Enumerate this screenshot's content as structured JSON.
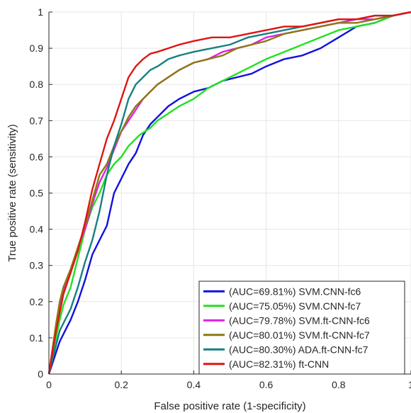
{
  "chart_data": {
    "type": "line",
    "title": "",
    "xlabel": "False positive rate (1-specificity)",
    "ylabel": "True positive rate (sensitivity)",
    "xlim": [
      0,
      1
    ],
    "ylim": [
      0,
      1
    ],
    "x_ticks": [
      "0",
      "0.2",
      "0.4",
      "0.6",
      "0.8",
      "1"
    ],
    "y_ticks": [
      "0",
      "0.1",
      "0.2",
      "0.3",
      "0.4",
      "0.5",
      "0.6",
      "0.7",
      "0.8",
      "0.9",
      "1"
    ],
    "grid": true,
    "legend_position": "bottom-right",
    "series": [
      {
        "name": "(AUC=69.81%) SVM.CNN-fc6",
        "color": "#1010e0",
        "x": [
          0,
          0.01,
          0.02,
          0.03,
          0.04,
          0.06,
          0.08,
          0.1,
          0.12,
          0.14,
          0.16,
          0.18,
          0.2,
          0.22,
          0.24,
          0.26,
          0.28,
          0.3,
          0.33,
          0.36,
          0.4,
          0.44,
          0.48,
          0.52,
          0.56,
          0.6,
          0.65,
          0.7,
          0.75,
          0.8,
          0.85,
          0.9,
          0.95,
          1.0
        ],
        "y": [
          0,
          0.03,
          0.06,
          0.09,
          0.11,
          0.15,
          0.2,
          0.26,
          0.33,
          0.37,
          0.41,
          0.5,
          0.54,
          0.58,
          0.61,
          0.66,
          0.69,
          0.71,
          0.74,
          0.76,
          0.78,
          0.79,
          0.81,
          0.82,
          0.83,
          0.85,
          0.87,
          0.88,
          0.9,
          0.93,
          0.96,
          0.97,
          0.99,
          1.0
        ]
      },
      {
        "name": "(AUC=75.05%) SVM.CNN-fc7",
        "color": "#22e022",
        "x": [
          0,
          0.01,
          0.02,
          0.03,
          0.04,
          0.06,
          0.08,
          0.1,
          0.12,
          0.14,
          0.16,
          0.18,
          0.2,
          0.22,
          0.25,
          0.28,
          0.3,
          0.33,
          0.36,
          0.4,
          0.44,
          0.48,
          0.52,
          0.56,
          0.6,
          0.65,
          0.7,
          0.75,
          0.8,
          0.85,
          0.9,
          0.95,
          1.0
        ],
        "y": [
          0,
          0.05,
          0.1,
          0.15,
          0.19,
          0.24,
          0.32,
          0.4,
          0.46,
          0.5,
          0.55,
          0.58,
          0.6,
          0.63,
          0.66,
          0.68,
          0.7,
          0.72,
          0.74,
          0.76,
          0.79,
          0.81,
          0.83,
          0.85,
          0.87,
          0.89,
          0.91,
          0.93,
          0.95,
          0.96,
          0.97,
          0.99,
          1.0
        ]
      },
      {
        "name": "(AUC=79.78%) SVM.ft-CNN-fc6",
        "color": "#e020e0",
        "x": [
          0,
          0.01,
          0.02,
          0.03,
          0.04,
          0.06,
          0.08,
          0.1,
          0.12,
          0.14,
          0.16,
          0.18,
          0.2,
          0.22,
          0.24,
          0.26,
          0.28,
          0.3,
          0.33,
          0.36,
          0.4,
          0.44,
          0.48,
          0.52,
          0.56,
          0.6,
          0.65,
          0.7,
          0.75,
          0.8,
          0.85,
          0.9,
          0.95,
          1.0
        ],
        "y": [
          0,
          0.07,
          0.13,
          0.19,
          0.23,
          0.28,
          0.35,
          0.4,
          0.47,
          0.53,
          0.57,
          0.62,
          0.67,
          0.7,
          0.73,
          0.76,
          0.78,
          0.8,
          0.82,
          0.84,
          0.86,
          0.87,
          0.89,
          0.9,
          0.91,
          0.93,
          0.94,
          0.95,
          0.96,
          0.97,
          0.98,
          0.98,
          0.99,
          1.0
        ]
      },
      {
        "name": "(AUC=80.01%) SVM.ft-CNN-fc7",
        "color": "#8a7a12",
        "x": [
          0,
          0.01,
          0.02,
          0.03,
          0.04,
          0.06,
          0.08,
          0.1,
          0.12,
          0.14,
          0.16,
          0.18,
          0.2,
          0.22,
          0.24,
          0.26,
          0.28,
          0.3,
          0.33,
          0.36,
          0.4,
          0.44,
          0.48,
          0.52,
          0.56,
          0.6,
          0.65,
          0.7,
          0.75,
          0.8,
          0.85,
          0.9,
          0.95,
          1.0
        ],
        "y": [
          0,
          0.07,
          0.14,
          0.2,
          0.24,
          0.29,
          0.35,
          0.41,
          0.48,
          0.55,
          0.58,
          0.63,
          0.67,
          0.71,
          0.74,
          0.76,
          0.78,
          0.8,
          0.82,
          0.84,
          0.86,
          0.87,
          0.88,
          0.9,
          0.91,
          0.92,
          0.94,
          0.95,
          0.96,
          0.97,
          0.97,
          0.98,
          0.99,
          1.0
        ]
      },
      {
        "name": "(AUC=80.30%) ADA.ft-CNN-fc7",
        "color": "#168080",
        "x": [
          0,
          0.01,
          0.02,
          0.03,
          0.04,
          0.06,
          0.08,
          0.1,
          0.12,
          0.14,
          0.16,
          0.18,
          0.2,
          0.22,
          0.24,
          0.26,
          0.28,
          0.3,
          0.33,
          0.36,
          0.4,
          0.45,
          0.5,
          0.55,
          0.6,
          0.65,
          0.7,
          0.75,
          0.8,
          0.85,
          0.9,
          0.95,
          1.0
        ],
        "y": [
          0,
          0.04,
          0.08,
          0.12,
          0.14,
          0.18,
          0.24,
          0.31,
          0.37,
          0.45,
          0.55,
          0.63,
          0.69,
          0.76,
          0.8,
          0.82,
          0.84,
          0.85,
          0.87,
          0.88,
          0.89,
          0.9,
          0.91,
          0.93,
          0.94,
          0.95,
          0.96,
          0.97,
          0.98,
          0.98,
          0.99,
          0.99,
          1.0
        ]
      },
      {
        "name": "(AUC=82.31%) ft-CNN",
        "color": "#e01414",
        "x": [
          0,
          0.01,
          0.02,
          0.03,
          0.04,
          0.06,
          0.08,
          0.1,
          0.12,
          0.14,
          0.16,
          0.18,
          0.2,
          0.22,
          0.24,
          0.26,
          0.28,
          0.3,
          0.33,
          0.36,
          0.4,
          0.45,
          0.5,
          0.55,
          0.6,
          0.65,
          0.7,
          0.75,
          0.8,
          0.85,
          0.9,
          0.95,
          1.0
        ],
        "y": [
          0,
          0.06,
          0.12,
          0.17,
          0.22,
          0.28,
          0.34,
          0.42,
          0.51,
          0.58,
          0.65,
          0.7,
          0.76,
          0.82,
          0.85,
          0.87,
          0.885,
          0.89,
          0.9,
          0.91,
          0.92,
          0.93,
          0.93,
          0.94,
          0.95,
          0.96,
          0.96,
          0.97,
          0.98,
          0.98,
          0.99,
          0.99,
          1.0
        ]
      }
    ]
  }
}
